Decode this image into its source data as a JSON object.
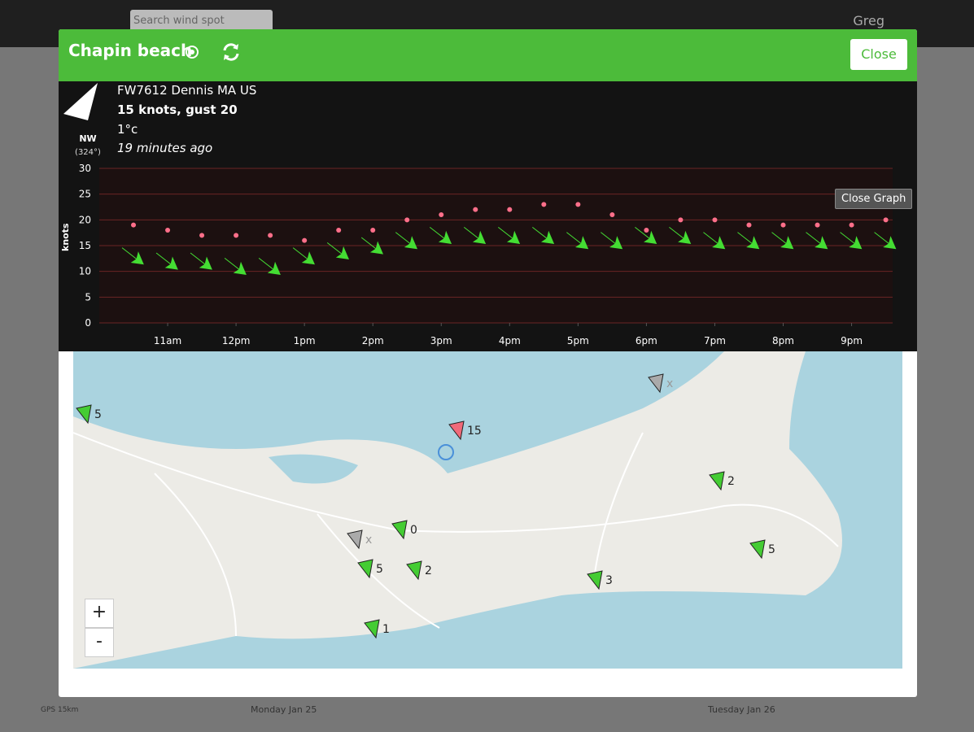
{
  "app": {
    "search_placeholder": "Search wind spot",
    "user": "Greg",
    "days": [
      "Monday Jan 25",
      "Tuesday Jan 26"
    ],
    "gps": "GPS 15km"
  },
  "modal": {
    "title": "Chapin beach",
    "close": "Close",
    "close_graph": "Close Graph"
  },
  "station": {
    "name": "FW7612 Dennis MA US",
    "wind": "15 knots, gust 20",
    "temperature": "1°c",
    "updated": "19 minutes ago",
    "direction": "NW",
    "degrees": "(324°)"
  },
  "chart_data": {
    "type": "scatter",
    "ylabel": "knots",
    "x": [
      10.5,
      11,
      11.5,
      12,
      12.5,
      13,
      13.5,
      14,
      14.5,
      15,
      15.5,
      16,
      16.5,
      17,
      17.5,
      18,
      18.5,
      19,
      19.5,
      20,
      20.5,
      21,
      21.5
    ],
    "series": [
      {
        "color": "#44dd33",
        "values": [
          13,
          12,
          12,
          11,
          11,
          13,
          14,
          15,
          16,
          17,
          17,
          17,
          17,
          16,
          16,
          17,
          17,
          16,
          16,
          16,
          16,
          16,
          16
        ]
      },
      {
        "color": "#ff6f8a",
        "values": [
          19,
          18,
          17,
          17,
          17,
          16,
          18,
          18,
          20,
          21,
          22,
          22,
          23,
          23,
          21,
          18,
          20,
          20,
          19,
          19,
          19,
          19,
          20
        ]
      }
    ],
    "xlim": [
      10,
      21.6
    ],
    "xticks": [
      {
        "value": 11,
        "label": "11am"
      },
      {
        "value": 12,
        "label": "12pm"
      },
      {
        "value": 13,
        "label": "1pm"
      },
      {
        "value": 14,
        "label": "2pm"
      },
      {
        "value": 15,
        "label": "3pm"
      },
      {
        "value": 16,
        "label": "4pm"
      },
      {
        "value": 17,
        "label": "5pm"
      },
      {
        "value": 18,
        "label": "6pm"
      },
      {
        "value": 19,
        "label": "7pm"
      },
      {
        "value": 20,
        "label": "8pm"
      },
      {
        "value": 21,
        "label": "9pm"
      }
    ],
    "ylim": [
      0,
      30
    ],
    "yticks": [
      0,
      5,
      10,
      15,
      20,
      25,
      30
    ],
    "grid": true
  },
  "map": {
    "markers": [
      "5",
      "15",
      "x",
      "2",
      "0",
      "x",
      "5",
      "2",
      "3",
      "5",
      "1"
    ],
    "zoom_in": "+",
    "zoom_out": "-"
  }
}
